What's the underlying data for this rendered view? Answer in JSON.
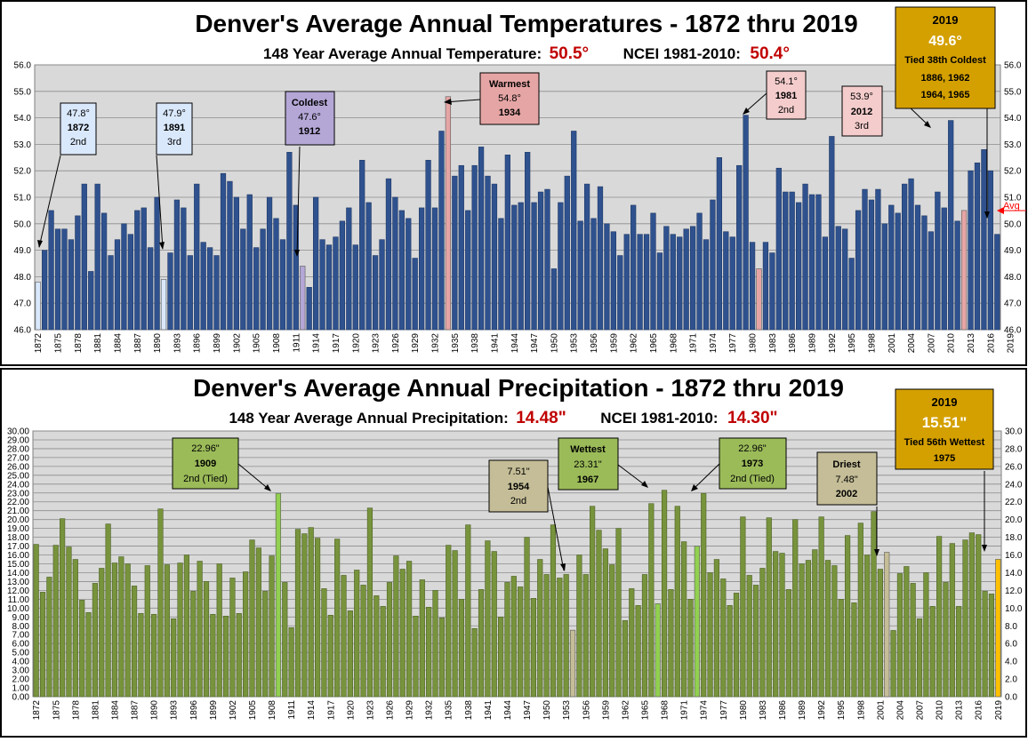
{
  "colors": {
    "bg": "#ffffff",
    "plot_bg": "#d9d9d9",
    "temp_bar": "#2f528f",
    "temp_bar_edge": "#1f3864",
    "precip_bar": "#77933c",
    "precip_bar_edge": "#4f6228",
    "warm_bar": "#e6a5a5",
    "cold_bar": "#b4a7d6",
    "bright_green": "#92d050",
    "dry_bar": "#c4bd97",
    "current_bar": "#ffc000",
    "red_text": "#c00000",
    "light_blue_box": "#dae8fc",
    "gold_box": "#d4a000",
    "avg_marker": "#ff0000"
  },
  "temperature": {
    "title": "Denver's Average Annual Temperatures - 1872 thru 2019",
    "subtitle_label1": "148 Year Average Annual Temperature:",
    "subtitle_value1": "50.5°",
    "subtitle_label2": "NCEI 1981-2010:",
    "subtitle_value2": "50.4°",
    "avg_marker_label": "Avg",
    "annotations": {
      "y1872": {
        "line1": "47.8°",
        "line2": "1872",
        "line3": "2nd"
      },
      "y1891": {
        "line1": "47.9°",
        "line2": "1891",
        "line3": "3rd"
      },
      "coldest": {
        "line1": "Coldest",
        "line2": "47.6°",
        "line3": "1912"
      },
      "warmest": {
        "line1": "Warmest",
        "line2": "54.8°",
        "line3": "1934"
      },
      "y1981": {
        "line1": "54.1°",
        "line2": "1981",
        "line3": "2nd"
      },
      "y2012": {
        "line1": "53.9°",
        "line2": "2012",
        "line3": "3rd"
      },
      "current": {
        "line1": "2019",
        "line2": "49.6°",
        "line3": "Tied 38th Coldest",
        "line4": "1886, 1962",
        "line5": "1964, 1965"
      }
    }
  },
  "precipitation": {
    "title": "Denver's Average Annual Precipitation - 1872 thru 2019",
    "subtitle_label1": "148 Year Average Annual Precipitation:",
    "subtitle_value1": "14.48\"",
    "subtitle_label2": "NCEI 1981-2010:",
    "subtitle_value2": "14.30\"",
    "annotations": {
      "y1909": {
        "line1": "22.96\"",
        "line2": "1909",
        "line3": "2nd (Tied)"
      },
      "y1954": {
        "line1": "7.51\"",
        "line2": "1954",
        "line3": "2nd"
      },
      "wettest": {
        "line1": "Wettest",
        "line2": "23.31\"",
        "line3": "1967"
      },
      "y1973": {
        "line1": "22.96\"",
        "line2": "1973",
        "line3": "2nd (Tied)"
      },
      "driest": {
        "line1": "Driest",
        "line2": "7.48\"",
        "line3": "2002"
      },
      "current": {
        "line1": "2019",
        "line2": "15.51\"",
        "line3": "Tied 56th Wettest",
        "line4": "1975"
      }
    }
  },
  "chart_data": [
    {
      "type": "bar",
      "title": "Denver's Average Annual Temperatures - 1872 thru 2019",
      "subtitle": "148 Year Average Annual Temperature: 50.5° NCEI 1981-2010: 50.4°",
      "xlabel": "",
      "ylabel": "",
      "x_start": 1872,
      "x_end": 2019,
      "ylim": [
        46.0,
        56.0
      ],
      "y_ticks": [
        "46.0",
        "47.0",
        "48.0",
        "49.0",
        "50.0",
        "51.0",
        "52.0",
        "53.0",
        "54.0",
        "55.0",
        "56.0"
      ],
      "x_tick_labels": [
        "1872",
        "1875",
        "1878",
        "1881",
        "1884",
        "1887",
        "1890",
        "1893",
        "1896",
        "1899",
        "1902",
        "1905",
        "1908",
        "1911",
        "1914",
        "1917",
        "1920",
        "1923",
        "1926",
        "1929",
        "1932",
        "1935",
        "1938",
        "1941",
        "1944",
        "1947",
        "1950",
        "1953",
        "1956",
        "1959",
        "1962",
        "1965",
        "1968",
        "1971",
        "1974",
        "1977",
        "1980",
        "1983",
        "1986",
        "1989",
        "1992",
        "1995",
        "1998",
        "2001",
        "2004",
        "2007",
        "2010",
        "2013",
        "2016",
        "2019"
      ],
      "average": 50.5,
      "grid": true,
      "highlights": {
        "warmest": 1934,
        "second_warmest": 1981,
        "third_warmest": 2012,
        "coldest": 1912,
        "second_coldest": 1872,
        "third_coldest": 1891,
        "current": 2019
      },
      "values": [
        47.8,
        49.0,
        50.5,
        49.8,
        49.8,
        49.4,
        50.3,
        51.5,
        48.2,
        51.5,
        50.4,
        48.8,
        49.4,
        50.0,
        49.6,
        50.5,
        50.6,
        49.1,
        51.0,
        47.9,
        48.9,
        50.9,
        50.6,
        48.8,
        51.5,
        49.3,
        49.1,
        48.8,
        51.9,
        51.6,
        51.0,
        49.8,
        51.1,
        49.1,
        49.8,
        51.0,
        50.2,
        49.4,
        52.7,
        50.7,
        48.4,
        47.6,
        51.0,
        49.4,
        49.2,
        49.5,
        50.1,
        50.6,
        49.2,
        52.4,
        50.8,
        48.8,
        49.4,
        51.7,
        51.0,
        50.5,
        50.2,
        48.7,
        50.6,
        52.4,
        50.6,
        53.5,
        54.8,
        51.8,
        52.2,
        50.5,
        52.2,
        52.9,
        51.8,
        51.5,
        50.2,
        52.6,
        50.7,
        50.8,
        52.7,
        50.8,
        51.2,
        51.3,
        48.3,
        50.8,
        51.8,
        53.5,
        50.1,
        51.5,
        50.2,
        51.4,
        50.0,
        49.7,
        48.8,
        49.6,
        50.7,
        49.6,
        49.6,
        50.4,
        48.9,
        49.9,
        49.6,
        49.5,
        49.8,
        49.9,
        50.4,
        49.4,
        50.9,
        52.5,
        49.7,
        49.5,
        52.2,
        54.1,
        49.3,
        48.3,
        49.3,
        48.9,
        52.1,
        51.2,
        51.2,
        50.8,
        51.5,
        51.1,
        51.1,
        49.5,
        53.3,
        49.9,
        49.8,
        48.7,
        50.5,
        51.3,
        50.9,
        51.3,
        50.0,
        50.7,
        50.4,
        51.5,
        51.7,
        50.7,
        50.3,
        49.7,
        51.2,
        50.6,
        53.9,
        50.1,
        50.5,
        52.0,
        52.3,
        52.8,
        52.0,
        49.6
      ]
    },
    {
      "type": "bar",
      "title": "Denver's Average Annual Precipitation - 1872 thru 2019",
      "subtitle": "148 Year Average Annual Precipitation: 14.48\" NCEI 1981-2010: 14.30\"",
      "xlabel": "",
      "ylabel": "",
      "x_start": 1872,
      "x_end": 2019,
      "ylim": [
        0.0,
        30.0
      ],
      "y_ticks_left": [
        "0.00",
        "1.00",
        "2.00",
        "3.00",
        "4.00",
        "5.00",
        "6.00",
        "7.00",
        "8.00",
        "9.00",
        "10.00",
        "11.00",
        "12.00",
        "13.00",
        "14.00",
        "15.00",
        "16.00",
        "17.00",
        "18.00",
        "19.00",
        "20.00",
        "21.00",
        "22.00",
        "23.00",
        "24.00",
        "25.00",
        "26.00",
        "27.00",
        "28.00",
        "29.00",
        "30.00"
      ],
      "y_ticks_right": [
        "0.0",
        "2.0",
        "4.0",
        "6.0",
        "8.0",
        "10.0",
        "12.0",
        "14.0",
        "16.0",
        "18.0",
        "20.0",
        "22.0",
        "24.0",
        "26.0",
        "28.0",
        "30.0"
      ],
      "x_tick_labels": [
        "1872",
        "1875",
        "1878",
        "1881",
        "1884",
        "1887",
        "1890",
        "1893",
        "1896",
        "1899",
        "1902",
        "1905",
        "1908",
        "1911",
        "1914",
        "1917",
        "1920",
        "1923",
        "1926",
        "1929",
        "1932",
        "1935",
        "1938",
        "1941",
        "1944",
        "1947",
        "1950",
        "1953",
        "1956",
        "1959",
        "1962",
        "1965",
        "1968",
        "1971",
        "1974",
        "1977",
        "1980",
        "1983",
        "1986",
        "1989",
        "1992",
        "1995",
        "1998",
        "2001",
        "2004",
        "2007",
        "2010",
        "2013",
        "2016",
        "2019"
      ],
      "grid": true,
      "highlights": {
        "wettest": 1967,
        "second_wettest_tied": [
          1909,
          1973
        ],
        "driest": 2002,
        "second_driest": 1954,
        "current": 2019
      },
      "values": [
        17.2,
        11.8,
        13.5,
        17.1,
        20.1,
        16.9,
        15.5,
        10.9,
        9.5,
        12.8,
        14.5,
        19.5,
        15.1,
        15.8,
        15.0,
        12.5,
        9.4,
        14.8,
        9.3,
        21.2,
        14.9,
        8.8,
        15.1,
        16.0,
        11.9,
        15.3,
        13.0,
        9.3,
        15.0,
        9.1,
        13.4,
        9.4,
        14.1,
        17.7,
        16.8,
        11.9,
        15.9,
        22.96,
        12.9,
        7.8,
        18.9,
        18.4,
        19.1,
        17.9,
        12.2,
        9.2,
        17.8,
        13.7,
        9.7,
        14.3,
        12.6,
        21.3,
        11.4,
        10.2,
        12.9,
        15.9,
        14.4,
        15.3,
        9.1,
        13.2,
        10.1,
        12.0,
        8.9,
        17.1,
        16.5,
        11.0,
        19.4,
        7.7,
        12.1,
        17.6,
        16.4,
        9.0,
        12.9,
        13.6,
        12.4,
        18.0,
        11.1,
        15.5,
        13.8,
        19.4,
        13.4,
        13.8,
        7.51,
        16.0,
        13.8,
        21.5,
        18.8,
        16.7,
        14.9,
        19.0,
        8.6,
        12.2,
        10.3,
        13.8,
        21.8,
        10.5,
        23.31,
        12.1,
        21.5,
        17.5,
        11.0,
        17.0,
        22.96,
        14.0,
        15.5,
        13.3,
        10.3,
        11.7,
        20.3,
        13.7,
        12.6,
        14.5,
        20.2,
        16.4,
        16.2,
        12.1,
        20.0,
        15.0,
        15.4,
        16.6,
        20.3,
        15.4,
        14.8,
        11.0,
        18.2,
        10.6,
        19.6,
        16.0,
        20.9,
        14.4,
        16.3,
        7.48,
        13.9,
        14.7,
        12.8,
        8.8,
        14.0,
        10.2,
        18.1,
        12.9,
        17.3,
        10.2,
        17.7,
        18.5,
        18.3,
        11.9,
        11.6,
        15.51
      ]
    }
  ]
}
